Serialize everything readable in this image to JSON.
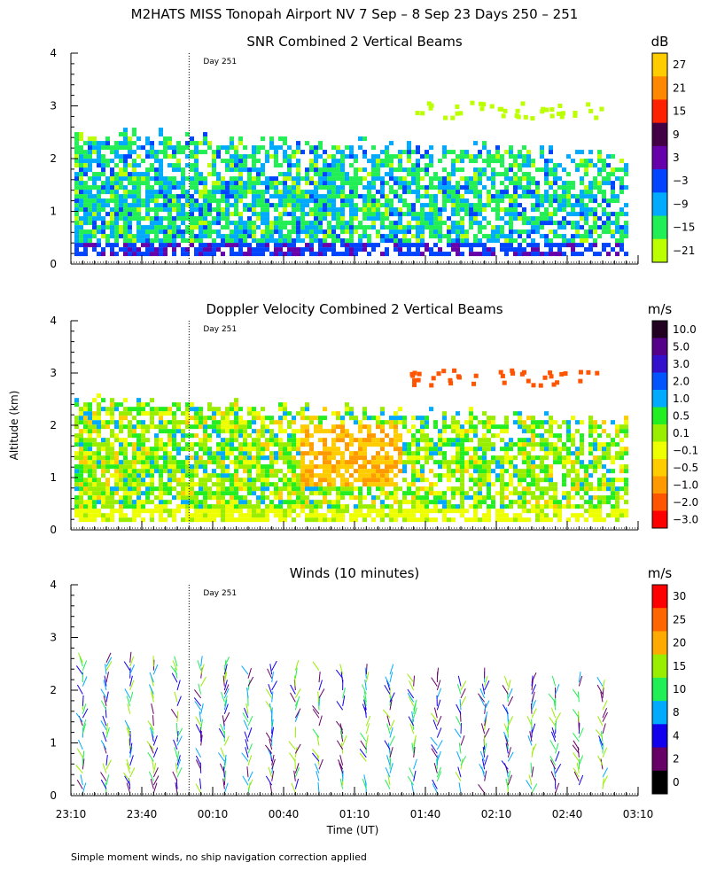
{
  "figure_title": "M2HATS MISS Tonopah Airport NV   7 Sep –  8 Sep 23 Days 250 – 251",
  "y_axis_label": "Altitude (km)",
  "x_axis_label": "Time (UT)",
  "footnote": "Simple moment winds, no ship navigation correction applied",
  "day_marker_label": "Day 251",
  "chart_data": [
    {
      "type": "heatmap",
      "title": "SNR Combined 2 Vertical Beams",
      "xlabel": "Time (UT)",
      "ylabel": "Altitude (km)",
      "x_ticks": [
        "23:10",
        "23:40",
        "00:10",
        "00:40",
        "01:10",
        "01:40",
        "02:10",
        "02:40",
        "03:10"
      ],
      "y_ticks": [
        "0",
        "1",
        "2",
        "3",
        "4"
      ],
      "ylim": [
        0,
        4
      ],
      "day_marker_time": "00:00",
      "colorbar": {
        "unit": "dB",
        "labels": [
          "27",
          "21",
          "15",
          "9",
          "3",
          "−3",
          "−9",
          "−15",
          "−21"
        ],
        "colors": [
          "#ffcc00",
          "#ff8800",
          "#ff2200",
          "#440044",
          "#6600aa",
          "#0044ff",
          "#00aaff",
          "#22ee55",
          "#bbff00"
        ]
      }
    },
    {
      "type": "heatmap",
      "title": "Doppler Velocity Combined 2 Vertical Beams",
      "xlabel": "Time (UT)",
      "ylabel": "Altitude (km)",
      "x_ticks": [
        "23:10",
        "23:40",
        "00:10",
        "00:40",
        "01:10",
        "01:40",
        "02:10",
        "02:40",
        "03:10"
      ],
      "y_ticks": [
        "0",
        "1",
        "2",
        "3",
        "4"
      ],
      "ylim": [
        0,
        4
      ],
      "day_marker_time": "00:00",
      "colorbar": {
        "unit": "m/s",
        "labels": [
          "10.0",
          "5.0",
          "3.0",
          "2.0",
          "1.0",
          "0.5",
          "0.1",
          "−0.1",
          "−0.5",
          "−1.0",
          "−2.0",
          "−3.0"
        ],
        "colors": [
          "#220022",
          "#550088",
          "#3311cc",
          "#0055ff",
          "#00aaff",
          "#22ee22",
          "#99ee00",
          "#eeff00",
          "#ffcc00",
          "#ff9900",
          "#ff5500",
          "#ff0000"
        ]
      }
    },
    {
      "type": "scatter",
      "title": "Winds (10 minutes)",
      "xlabel": "Time (UT)",
      "ylabel": "Altitude (km)",
      "x_ticks": [
        "23:10",
        "23:40",
        "00:10",
        "00:40",
        "01:10",
        "01:40",
        "02:10",
        "02:40",
        "03:10"
      ],
      "y_ticks": [
        "0",
        "1",
        "2",
        "3",
        "4"
      ],
      "ylim": [
        0,
        4
      ],
      "day_marker_time": "00:00",
      "colorbar": {
        "unit": "m/s",
        "labels": [
          "30",
          "25",
          "20",
          "15",
          "10",
          "8",
          "4",
          "2",
          "0"
        ],
        "colors": [
          "#ff0000",
          "#ff6600",
          "#ffaa00",
          "#99ee00",
          "#22ee55",
          "#00aaff",
          "#1100ee",
          "#660066",
          "#000000"
        ]
      }
    }
  ]
}
